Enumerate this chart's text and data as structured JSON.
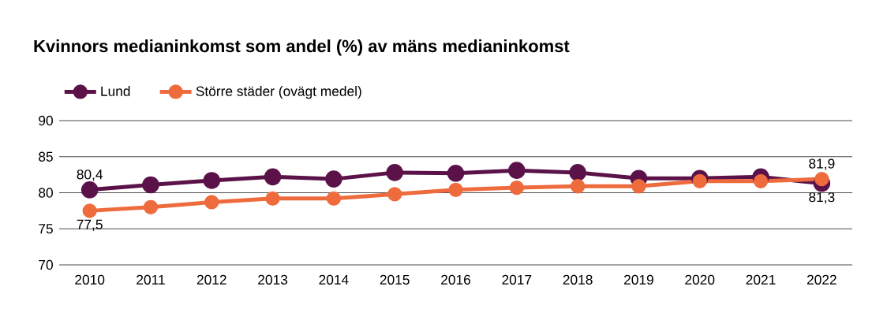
{
  "chart_data": {
    "type": "line",
    "title": "Kvinnors medianinkomst som andel (%) av mäns medianinkomst",
    "categories": [
      "2010",
      "2011",
      "2012",
      "2013",
      "2014",
      "2015",
      "2016",
      "2017",
      "2018",
      "2019",
      "2020",
      "2021",
      "2022"
    ],
    "series": [
      {
        "name": "Lund",
        "color": "#5a1248",
        "values": [
          80.4,
          81.1,
          81.7,
          82.2,
          81.9,
          82.8,
          82.7,
          83.1,
          82.8,
          82.0,
          82.0,
          82.2,
          81.3
        ],
        "value_labels": [
          "80,4",
          null,
          null,
          null,
          null,
          null,
          null,
          null,
          null,
          null,
          null,
          null,
          "81,3"
        ]
      },
      {
        "name": "Större städer (ovägt medel)",
        "color": "#ee6b3d",
        "values": [
          77.5,
          78.0,
          78.7,
          79.2,
          79.2,
          79.8,
          80.4,
          80.7,
          80.9,
          80.9,
          81.6,
          81.6,
          81.9
        ],
        "value_labels": [
          "77,5",
          null,
          null,
          null,
          null,
          null,
          null,
          null,
          null,
          null,
          null,
          null,
          "81,9"
        ]
      }
    ],
    "ylim": [
      70,
      90
    ],
    "yticks": [
      70,
      75,
      80,
      85,
      90
    ],
    "grid": "y",
    "legend": "top left",
    "marker": "circle",
    "line_style": "solid"
  }
}
